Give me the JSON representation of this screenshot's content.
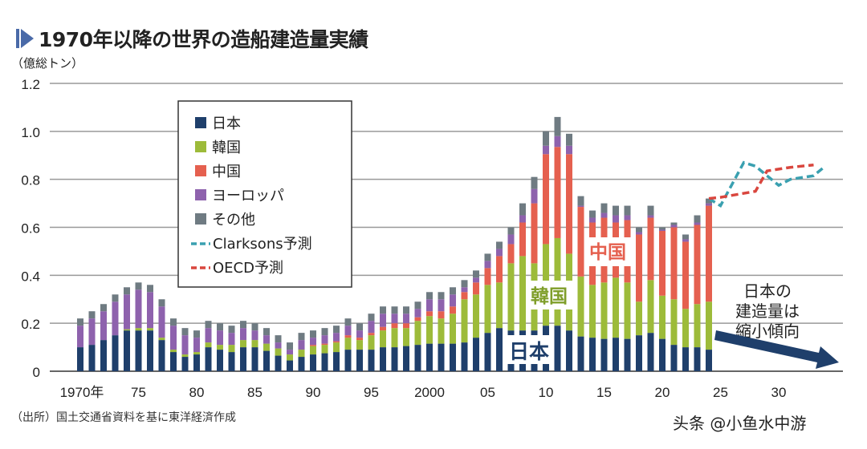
{
  "title": "1970年以降の世界の造船建造量実績",
  "unit": "（億総トン）",
  "source": "（出所）国土交通省資料を基に東洋経済作成",
  "watermark": "头条 @小鱼水中游",
  "chart_data": {
    "type": "bar",
    "stacked": true,
    "title": "1970年以降の世界の造船建造量実績",
    "ylabel": "（億総トン）",
    "ylim": [
      0,
      1.2
    ],
    "xlim": [
      1970,
      2034
    ],
    "yticks": [
      "0",
      "0.2",
      "0.4",
      "0.6",
      "0.8",
      "1.0",
      "1.2"
    ],
    "xticks": [
      {
        "year": 1970,
        "label": "1970年"
      },
      {
        "year": 1975,
        "label": "75"
      },
      {
        "year": 1980,
        "label": "80"
      },
      {
        "year": 1985,
        "label": "85"
      },
      {
        "year": 1990,
        "label": "90"
      },
      {
        "year": 1995,
        "label": "95"
      },
      {
        "year": 2000,
        "label": "2000"
      },
      {
        "year": 2005,
        "label": "05"
      },
      {
        "year": 2010,
        "label": "10"
      },
      {
        "year": 2015,
        "label": "15"
      },
      {
        "year": 2020,
        "label": "20"
      },
      {
        "year": 2025,
        "label": "25"
      },
      {
        "year": 2030,
        "label": "30"
      }
    ],
    "grid": true,
    "legend_position": "top-left",
    "years": [
      1970,
      1971,
      1972,
      1973,
      1974,
      1975,
      1976,
      1977,
      1978,
      1979,
      1980,
      1981,
      1982,
      1983,
      1984,
      1985,
      1986,
      1987,
      1988,
      1989,
      1990,
      1991,
      1992,
      1993,
      1994,
      1995,
      1996,
      1997,
      1998,
      1999,
      2000,
      2001,
      2002,
      2003,
      2004,
      2005,
      2006,
      2007,
      2008,
      2009,
      2010,
      2011,
      2012,
      2013,
      2014,
      2015,
      2016,
      2017,
      2018,
      2019,
      2020,
      2021,
      2022,
      2023,
      2024
    ],
    "series": [
      {
        "name": "日本",
        "color": "#1f3f6b",
        "values": [
          0.1,
          0.11,
          0.13,
          0.15,
          0.17,
          0.17,
          0.17,
          0.13,
          0.08,
          0.06,
          0.07,
          0.1,
          0.09,
          0.08,
          0.1,
          0.1,
          0.085,
          0.065,
          0.045,
          0.06,
          0.07,
          0.075,
          0.08,
          0.09,
          0.09,
          0.09,
          0.1,
          0.1,
          0.105,
          0.11,
          0.115,
          0.115,
          0.115,
          0.12,
          0.14,
          0.16,
          0.18,
          0.17,
          0.17,
          0.17,
          0.19,
          0.19,
          0.17,
          0.145,
          0.14,
          0.135,
          0.14,
          0.135,
          0.15,
          0.16,
          0.135,
          0.11,
          0.1,
          0.1,
          0.09
        ]
      },
      {
        "name": "韓国",
        "color": "#9dbb3a",
        "values": [
          0,
          0,
          0,
          0,
          0.005,
          0.01,
          0.01,
          0.01,
          0.01,
          0.01,
          0.01,
          0.02,
          0.02,
          0.03,
          0.03,
          0.03,
          0.03,
          0.03,
          0.025,
          0.03,
          0.035,
          0.035,
          0.04,
          0.05,
          0.04,
          0.06,
          0.07,
          0.08,
          0.075,
          0.1,
          0.115,
          0.105,
          0.125,
          0.18,
          0.18,
          0.2,
          0.19,
          0.28,
          0.31,
          0.28,
          0.34,
          0.365,
          0.32,
          0.25,
          0.22,
          0.235,
          0.25,
          0.235,
          0.14,
          0.22,
          0.18,
          0.19,
          0.16,
          0.18,
          0.2
        ]
      },
      {
        "name": "中国",
        "color": "#e5604f",
        "values": [
          0,
          0,
          0,
          0,
          0,
          0,
          0,
          0,
          0,
          0,
          0,
          0,
          0,
          0,
          0,
          0,
          0,
          0,
          0,
          0,
          0.005,
          0.005,
          0.005,
          0.01,
          0.01,
          0.01,
          0.015,
          0.02,
          0.02,
          0.015,
          0.02,
          0.03,
          0.03,
          0.03,
          0.05,
          0.07,
          0.11,
          0.08,
          0.14,
          0.25,
          0.375,
          0.38,
          0.415,
          0.29,
          0.26,
          0.27,
          0.23,
          0.26,
          0.28,
          0.26,
          0.27,
          0.3,
          0.28,
          0.33,
          0.4
        ]
      },
      {
        "name": "ヨーロッパ",
        "color": "#8e62ad",
        "values": [
          0.09,
          0.11,
          0.12,
          0.14,
          0.145,
          0.16,
          0.15,
          0.13,
          0.1,
          0.08,
          0.06,
          0.06,
          0.06,
          0.05,
          0.05,
          0.04,
          0.035,
          0.025,
          0.02,
          0.04,
          0.03,
          0.035,
          0.035,
          0.04,
          0.03,
          0.05,
          0.055,
          0.04,
          0.04,
          0.035,
          0.05,
          0.05,
          0.05,
          0.02,
          0.02,
          0.03,
          0.03,
          0.04,
          0.03,
          0.06,
          0.035,
          0.045,
          0.035,
          0.005,
          0.02,
          0.02,
          0.03,
          0.02,
          0.01,
          0.01,
          0.005,
          0.01,
          0.01,
          0.01,
          0.01
        ]
      },
      {
        "name": "その他",
        "color": "#6f7b82",
        "values": [
          0.03,
          0.03,
          0.03,
          0.03,
          0.03,
          0.03,
          0.03,
          0.03,
          0.03,
          0.03,
          0.03,
          0.03,
          0.03,
          0.03,
          0.03,
          0.03,
          0.03,
          0.03,
          0.03,
          0.03,
          0.03,
          0.03,
          0.03,
          0.03,
          0.03,
          0.03,
          0.03,
          0.03,
          0.03,
          0.03,
          0.03,
          0.03,
          0.03,
          0.03,
          0.03,
          0.03,
          0.03,
          0.03,
          0.05,
          0.05,
          0.06,
          0.08,
          0.05,
          0.04,
          0.03,
          0.04,
          0.04,
          0.04,
          0.02,
          0.04,
          0.01,
          0.01,
          0.02,
          0.03,
          0.02
        ]
      }
    ],
    "forecasts": [
      {
        "name": "Clarksons予測",
        "color": "#3aa0b0",
        "x": [
          2024,
          2025,
          2027,
          2028,
          2030,
          2031,
          2033,
          2034
        ],
        "values": [
          0.72,
          0.69,
          0.87,
          0.855,
          0.775,
          0.8,
          0.815,
          0.855
        ]
      },
      {
        "name": "OECD予測",
        "color": "#d9463e",
        "x": [
          2024,
          2025,
          2028,
          2029,
          2031,
          2033
        ],
        "values": [
          0.72,
          0.725,
          0.75,
          0.835,
          0.85,
          0.86
        ]
      }
    ],
    "annotations": [
      {
        "text": "日本",
        "color": "#1f3f6b"
      },
      {
        "text": "韓国",
        "color": "#7f9e2a"
      },
      {
        "text": "中国",
        "color": "#e5604f"
      },
      {
        "text": "日本の\n建造量は\n縮小傾向",
        "color": "#1f3f6b"
      }
    ]
  }
}
